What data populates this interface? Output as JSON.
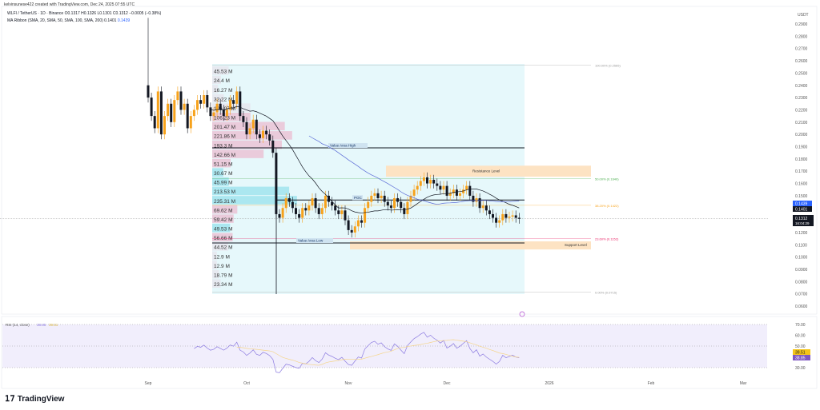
{
  "header": {
    "credit": "kelvinsunese422 created with TradingView.com, Dec 24, 2025 07:55 UTC",
    "symbol_line": "WLFI / TetherUS · 1D · Binance  O0.1317  H0.1326  L0.1301  C0.1312  −0.0005 (−0.38%)",
    "ma_line": "MA Ribbon (SMA, 20, SMA, 50, SMA, 100, SMA, 200)  0.1401",
    "ma_line_value2": "0.1439"
  },
  "colors": {
    "up": "#f7a21b",
    "down": "#131722",
    "ma1": "#131722",
    "ma2": "#5b6bd6",
    "rsi": "#8c7be0",
    "rsi_ma": "#f5d58a",
    "value_area": "#e6f8fb",
    "zone": "#fde3c3"
  },
  "chart_data": {
    "type": "candlestick",
    "price_unit": "USDT",
    "y_ticks": [
      "0.2900",
      "0.2800",
      "0.2700",
      "0.2600",
      "0.2500",
      "0.2400",
      "0.2300",
      "0.2200",
      "0.2100",
      "0.2000",
      "0.1900",
      "0.1800",
      "0.1700",
      "0.1600",
      "0.1500",
      "0.1200",
      "0.1100",
      "0.1000",
      "0.0900",
      "0.0800",
      "0.0700",
      "0.0600"
    ],
    "ylim": [
      0.06,
      0.29
    ],
    "x_ticks": [
      "Sep",
      "Oct",
      "Nov",
      "Dec",
      "2026",
      "Feb",
      "Mar"
    ],
    "closes": [
      0.23,
      0.215,
      0.205,
      0.235,
      0.2,
      0.215,
      0.225,
      0.21,
      0.228,
      0.235,
      0.22,
      0.225,
      0.205,
      0.215,
      0.22,
      0.228,
      0.225,
      0.232,
      0.222,
      0.215,
      0.218,
      0.225,
      0.22,
      0.215,
      0.22,
      0.228,
      0.225,
      0.235,
      0.215,
      0.21,
      0.2,
      0.205,
      0.212,
      0.2,
      0.197,
      0.203,
      0.2,
      0.195,
      0.185,
      0.135,
      0.132,
      0.14,
      0.148,
      0.145,
      0.14,
      0.135,
      0.132,
      0.14,
      0.138,
      0.142,
      0.148,
      0.14,
      0.135,
      0.14,
      0.15,
      0.145,
      0.142,
      0.138,
      0.135,
      0.138,
      0.13,
      0.122,
      0.12,
      0.125,
      0.13,
      0.128,
      0.14,
      0.145,
      0.15,
      0.152,
      0.148,
      0.15,
      0.145,
      0.142,
      0.14,
      0.148,
      0.145,
      0.14,
      0.135,
      0.145,
      0.15,
      0.155,
      0.158,
      0.162,
      0.165,
      0.16,
      0.163,
      0.16,
      0.158,
      0.155,
      0.158,
      0.15,
      0.152,
      0.155,
      0.15,
      0.152,
      0.155,
      0.158,
      0.15,
      0.145,
      0.148,
      0.14,
      0.142,
      0.138,
      0.135,
      0.132,
      0.128,
      0.13,
      0.135,
      0.132,
      0.133,
      0.134,
      0.132,
      0.1312
    ],
    "price_badges": {
      "ma_blue": "0.1439",
      "ma_black": "0.1401",
      "last": "0.1312",
      "countdown": "16:04:29"
    },
    "volume_profile": [
      "45.53 M",
      "24.4 M",
      "16.27 M",
      "32.22 M",
      "106.07 M",
      "106.23 M",
      "201.47 M",
      "221.86 M",
      "193.3 M",
      "142.66 M",
      "51.15 M",
      "30.67 M",
      "45.99 M",
      "213.53 M",
      "235.31 M",
      "69.62 M",
      "59.42 M",
      "49.53 M",
      "56.66 M",
      "44.52 M",
      "12.9 M",
      "12.9 M",
      "18.79 M",
      "23.34 M"
    ],
    "levels": {
      "vah": {
        "label": "Value Area High",
        "price": 0.189
      },
      "poc": {
        "label": "POC",
        "price": 0.1465
      },
      "val": {
        "label": "Value Area Low",
        "price": 0.1115
      }
    },
    "zones": {
      "resistance": {
        "label": "Resistance Level",
        "top": 0.1745,
        "bottom": 0.1655
      },
      "support": {
        "label": "Support Level",
        "top": 0.1128,
        "bottom": 0.1062
      }
    },
    "fib": [
      {
        "label": "100.00% (0.2565)",
        "price": 0.2565,
        "color": "#999"
      },
      {
        "label": "50.00% (0.1640)",
        "price": 0.164,
        "color": "#4caf50"
      },
      {
        "label": "38.20% (0.1422)",
        "price": 0.1422,
        "color": "#f7a21b"
      },
      {
        "label": "23.60% (0.1152)",
        "price": 0.1152,
        "color": "#e91e63"
      },
      {
        "label": "0.00% (0.0715)",
        "price": 0.0715,
        "color": "#999"
      }
    ],
    "rsi": {
      "label": "RSI (14, close)",
      "value": "38.85",
      "ma_value": "39.51",
      "ticks": [
        "70.00",
        "60.00",
        "50.00",
        "30.00"
      ],
      "ylim": [
        30,
        70
      ]
    }
  },
  "brand": "TradingView"
}
